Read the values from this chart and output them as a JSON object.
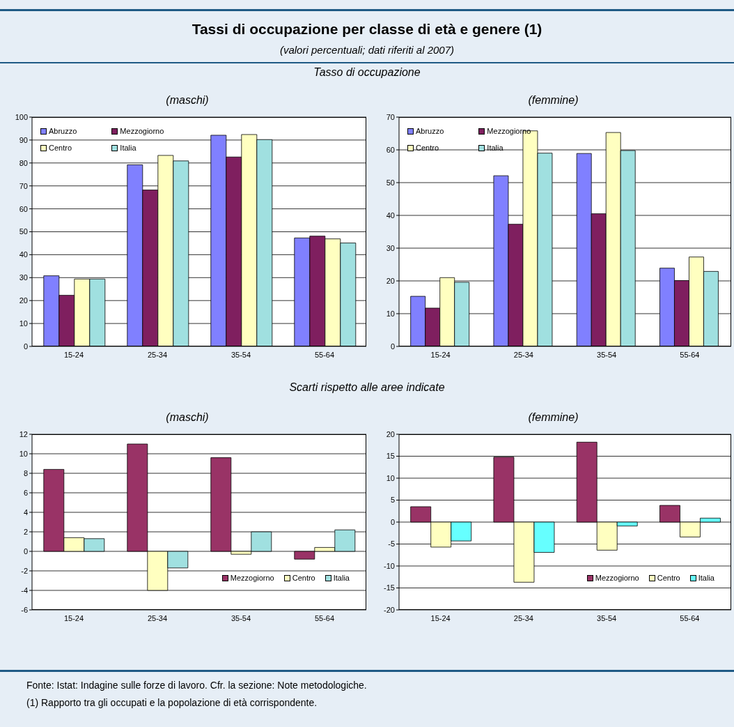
{
  "chart_data": [
    {
      "type": "bar",
      "title": "(maschi)",
      "annotations": [
        "Tassi di occupazione per classe di età e genere (1)",
        "(valori percentuali; dati riferiti al 2007)",
        "Tasso di occupazione"
      ],
      "categories": [
        "15-24",
        "25-34",
        "35-54",
        "55-64"
      ],
      "ylim": [
        0,
        100
      ],
      "yticks": [
        0,
        10,
        20,
        30,
        40,
        50,
        60,
        70,
        80,
        90,
        100
      ],
      "grid": "y",
      "legend": "top left",
      "series": [
        {
          "name": "Abruzzo",
          "color": "#8080ff",
          "values": [
            30.8,
            79.2,
            92.1,
            47.3
          ]
        },
        {
          "name": "Mezzogiorno",
          "color": "#7f1f5f",
          "values": [
            22.3,
            68.2,
            82.6,
            48.1
          ]
        },
        {
          "name": "Centro",
          "color": "#ffffc0",
          "values": [
            29.4,
            83.3,
            92.4,
            46.9
          ]
        },
        {
          "name": "Italia",
          "color": "#a0e0e0",
          "values": [
            29.4,
            80.9,
            90.2,
            45.1
          ]
        }
      ]
    },
    {
      "type": "bar",
      "title": "(femmine)",
      "categories": [
        "15-24",
        "25-34",
        "35-54",
        "55-64"
      ],
      "ylim": [
        0,
        70
      ],
      "yticks": [
        0,
        10,
        20,
        30,
        40,
        50,
        60,
        70
      ],
      "grid": "y",
      "legend": "top left",
      "series": [
        {
          "name": "Abruzzo",
          "color": "#8080ff",
          "values": [
            15.3,
            52.1,
            58.9,
            23.9
          ]
        },
        {
          "name": "Mezzogiorno",
          "color": "#7f1f5f",
          "values": [
            11.7,
            37.3,
            40.5,
            20.1
          ]
        },
        {
          "name": "Centro",
          "color": "#ffffc0",
          "values": [
            21.0,
            65.8,
            65.3,
            27.3
          ]
        },
        {
          "name": "Italia",
          "color": "#a0e0e0",
          "values": [
            19.6,
            59.0,
            59.8,
            22.9
          ]
        }
      ]
    },
    {
      "type": "bar",
      "title": "(maschi)",
      "annotations": [
        "Scarti rispetto alle aree indicate"
      ],
      "categories": [
        "15-24",
        "25-34",
        "35-54",
        "55-64"
      ],
      "ylim": [
        -6,
        12
      ],
      "yticks": [
        -6,
        -4,
        -2,
        0,
        2,
        4,
        6,
        8,
        10,
        12
      ],
      "grid": "y",
      "legend": "bottom right",
      "series": [
        {
          "name": "Mezzogiorno",
          "color": "#993366",
          "values": [
            8.4,
            11.0,
            9.6,
            -0.8
          ]
        },
        {
          "name": "Centro",
          "color": "#ffffc0",
          "values": [
            1.4,
            -4.0,
            -0.3,
            0.4
          ]
        },
        {
          "name": "Italia",
          "color": "#a0e0e0",
          "values": [
            1.3,
            -1.7,
            2.0,
            2.2
          ]
        }
      ]
    },
    {
      "type": "bar",
      "title": "(femmine)",
      "annotations": [
        "Fonte: Istat: Indagine sulle forze di lavoro. Cfr. la sezione: Note metodologiche.",
        "(1) Rapporto tra gli occupati e la popolazione di età corrispondente."
      ],
      "categories": [
        "15-24",
        "25-34",
        "35-54",
        "55-64"
      ],
      "ylim": [
        -20,
        20
      ],
      "yticks": [
        -20,
        -15,
        -10,
        -5,
        0,
        5,
        10,
        15,
        20
      ],
      "grid": "y",
      "legend": "bottom right",
      "series": [
        {
          "name": "Mezzogiorno",
          "color": "#993366",
          "values": [
            3.5,
            14.8,
            18.2,
            3.8
          ]
        },
        {
          "name": "Centro",
          "color": "#ffffc0",
          "values": [
            -5.7,
            -13.7,
            -6.4,
            -3.4
          ]
        },
        {
          "name": "Italia",
          "color": "#66ffff",
          "values": [
            -4.3,
            -6.9,
            -0.9,
            0.9
          ]
        }
      ]
    }
  ]
}
